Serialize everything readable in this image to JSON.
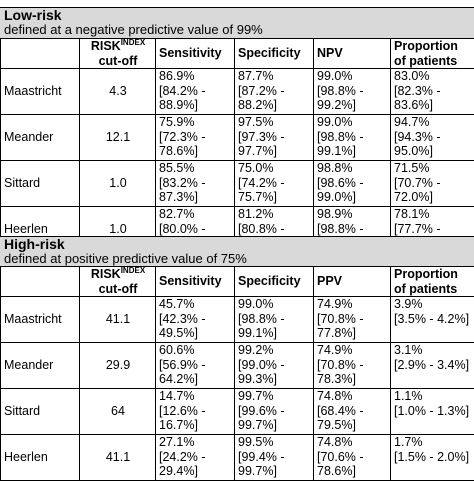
{
  "top_fragment": "[bracketed header text above the table is cut off by the top edge]",
  "low_risk": {
    "title": "Low-risk",
    "subtitle": "defined at a negative predictive value of 99%",
    "headers": {
      "risk_main": "RISK",
      "risk_sup": "INDEX",
      "risk_sub": "cut-off",
      "sensitivity": "Sensitivity",
      "specificity": "Specificity",
      "predictive": "NPV",
      "proportion_1": "Proportion",
      "proportion_2": "of patients"
    },
    "rows": [
      {
        "site": "Maastricht",
        "cutoff": "4.3",
        "sens": [
          "86.9%",
          "[84.2% -",
          "88.9%]"
        ],
        "spec": [
          "87.7%",
          "[87.2% -",
          "88.2%]"
        ],
        "pv": [
          "99.0%",
          "[98.8% -",
          "99.2%]"
        ],
        "prop": [
          "83.0%",
          "[82.3% -",
          "83.6%]"
        ]
      },
      {
        "site": "Meander",
        "cutoff": "12.1",
        "sens": [
          "75.9%",
          "[72.3% -",
          "78.6%]"
        ],
        "spec": [
          "97.5%",
          "[97.3% -",
          "97.7%]"
        ],
        "pv": [
          "99.0%",
          "[98.8% -",
          "99.1%]"
        ],
        "prop": [
          "94.7%",
          "[94.3% -",
          "95.0%]"
        ]
      },
      {
        "site": "Sittard",
        "cutoff": "1.0",
        "sens": [
          "85.5%",
          "[83.2% -",
          "87.3%]"
        ],
        "spec": [
          "75.0%",
          "[74.2% -",
          "75.7%]"
        ],
        "pv": [
          "98.8%",
          "[98.6% -",
          "99.0%]"
        ],
        "prop": [
          "71.5%",
          "[70.7% -",
          "72.0%]"
        ]
      },
      {
        "site": "Heerlen",
        "cutoff": "1.0",
        "sens": [
          "82.7%",
          "[80.0% -",
          "85.2%]"
        ],
        "spec": [
          "81.2%",
          "[80.8% -",
          "81.8%]"
        ],
        "pv": [
          "98.9%",
          "[98.8% -",
          "99.0%]"
        ],
        "prop": [
          "78.1%",
          "[77.7% -",
          "78.8%]"
        ]
      }
    ]
  },
  "high_risk": {
    "title": "High-risk",
    "subtitle": "defined at positive predictive value of 75%",
    "headers": {
      "risk_main": "RISK",
      "risk_sup": "INDEX",
      "risk_sub": "cut-off",
      "sensitivity": "Sensitivity",
      "specificity": "Specificity",
      "predictive": "PPV",
      "proportion_1": "Proportion",
      "proportion_2": "of patients"
    },
    "rows": [
      {
        "site": "Maastricht",
        "cutoff": "41.1",
        "sens": [
          "45.7%",
          "[42.3% -",
          "49.5%]"
        ],
        "spec": [
          "99.0%",
          "[98.8% -",
          "99.1%]"
        ],
        "pv": [
          "74.9%",
          "[70.8% -",
          "77.8%]"
        ],
        "prop": [
          "3.9%",
          "[3.5% - 4.2%]"
        ]
      },
      {
        "site": "Meander",
        "cutoff": "29.9",
        "sens": [
          "60.6%",
          "[56.9% -",
          "64.2%]"
        ],
        "spec": [
          "99.2%",
          "[99.0% -",
          "99.3%]"
        ],
        "pv": [
          "74.9%",
          "[70.8% -",
          "78.3%]"
        ],
        "prop": [
          "3.1%",
          "[2.9% - 3.4%]"
        ]
      },
      {
        "site": "Sittard",
        "cutoff": "64",
        "sens": [
          "14.7%",
          "[12.6% -",
          "16.7%]"
        ],
        "spec": [
          "99.7%",
          "[99.6% -",
          "99.7%]"
        ],
        "pv": [
          "74.8%",
          "[68.4% -",
          "79.5%]"
        ],
        "prop": [
          "1.1%",
          "[1.0% - 1.3%]"
        ]
      },
      {
        "site": "Heerlen",
        "cutoff": "41.1",
        "sens": [
          "27.1%",
          "[24.2% -",
          "29.4%]"
        ],
        "spec": [
          "99.5%",
          "[99.4% -",
          "99.7%]"
        ],
        "pv": [
          "74.8%",
          "[70.6% -",
          "78.6%]"
        ],
        "prop": [
          "1.7%",
          "[1.5% - 2.0%]"
        ]
      }
    ]
  }
}
